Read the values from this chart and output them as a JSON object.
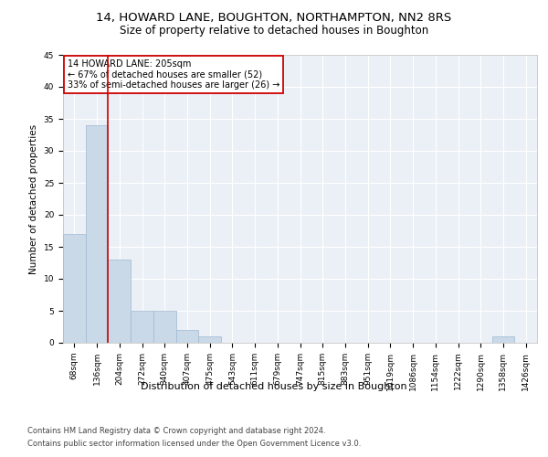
{
  "title1": "14, HOWARD LANE, BOUGHTON, NORTHAMPTON, NN2 8RS",
  "title2": "Size of property relative to detached houses in Boughton",
  "xlabel": "Distribution of detached houses by size in Boughton",
  "ylabel": "Number of detached properties",
  "footer1": "Contains HM Land Registry data © Crown copyright and database right 2024.",
  "footer2": "Contains public sector information licensed under the Open Government Licence v3.0.",
  "categories": [
    "68sqm",
    "136sqm",
    "204sqm",
    "272sqm",
    "340sqm",
    "407sqm",
    "475sqm",
    "543sqm",
    "611sqm",
    "679sqm",
    "747sqm",
    "815sqm",
    "883sqm",
    "951sqm",
    "1019sqm",
    "1086sqm",
    "1154sqm",
    "1222sqm",
    "1290sqm",
    "1358sqm",
    "1426sqm"
  ],
  "values": [
    17,
    34,
    13,
    5,
    5,
    2,
    1,
    0,
    0,
    0,
    0,
    0,
    0,
    0,
    0,
    0,
    0,
    0,
    0,
    1,
    0
  ],
  "bar_color": "#c9d9e8",
  "bar_edge_color": "#a0b8d0",
  "vline_color": "#cc0000",
  "annotation_line1": "14 HOWARD LANE: 205sqm",
  "annotation_line2": "← 67% of detached houses are smaller (52)",
  "annotation_line3": "33% of semi-detached houses are larger (26) →",
  "annotation_box_color": "#cc0000",
  "ylim": [
    0,
    45
  ],
  "yticks": [
    0,
    5,
    10,
    15,
    20,
    25,
    30,
    35,
    40,
    45
  ],
  "background_color": "#eaf0f6",
  "grid_color": "#ffffff",
  "title1_fontsize": 9.5,
  "title2_fontsize": 8.5,
  "xlabel_fontsize": 8,
  "ylabel_fontsize": 7.5,
  "tick_fontsize": 6.5,
  "annotation_fontsize": 7,
  "footer_fontsize": 6
}
